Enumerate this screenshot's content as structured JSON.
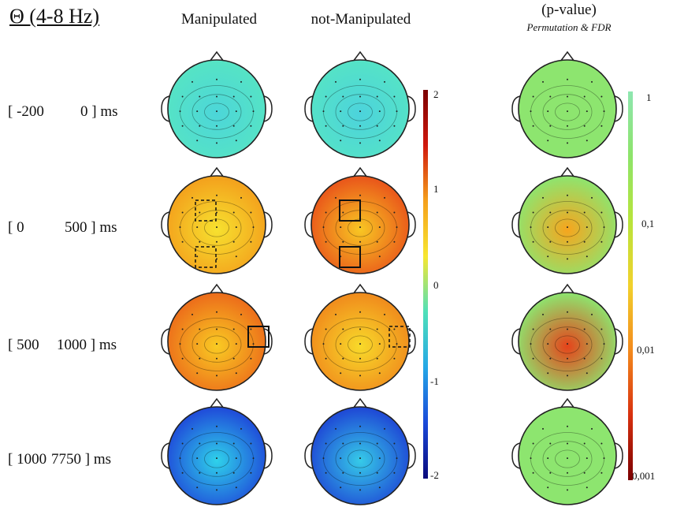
{
  "header": {
    "band_title": "Θ (4-8 Hz)",
    "col_manipulated": "Manipulated",
    "col_not_manipulated": "not-Manipulated",
    "col_pvalue": "(p-value)",
    "col_pvalue_sub": "Permutation & FDR"
  },
  "rows": [
    {
      "start": "[ -200",
      "end": "0 ] ms"
    },
    {
      "start": "[ 0",
      "end": "500 ] ms"
    },
    {
      "start": "[ 500",
      "end": "1000 ] ms"
    },
    {
      "start": "[ 1000",
      "end": "7750 ] ms"
    }
  ],
  "power_colorbar": {
    "ticks": [
      "2",
      "1",
      "0",
      "-1",
      "-2"
    ],
    "colors": [
      "#7a0000",
      "#d0190e",
      "#f5a01c",
      "#f7e730",
      "#4fe0b9",
      "#25a7e6",
      "#1a49d9",
      "#0a0a7c"
    ]
  },
  "pvalue_colorbar": {
    "ticks": [
      "1",
      "0,1",
      "0,01",
      "0,001"
    ],
    "colors": [
      "#8ee6b0",
      "#8de46a",
      "#b8e43b",
      "#f2d12c",
      "#f38a1d",
      "#d8300f",
      "#7a0000"
    ]
  },
  "maps": {
    "manipulated": [
      {
        "fill": "#56e4c4",
        "accent": "#4cd6d9"
      },
      {
        "fill": "#f3a01c",
        "accent": "#f7e12f"
      },
      {
        "fill": "#ec6b1a",
        "accent": "#f9cb23"
      },
      {
        "fill": "#1f49d9",
        "accent": "#2fd2ea"
      }
    ],
    "not_manipulated": [
      {
        "fill": "#55e3c6",
        "accent": "#4cd3dc"
      },
      {
        "fill": "#e9541a",
        "accent": "#f8c723"
      },
      {
        "fill": "#f08a1c",
        "accent": "#f8da2a"
      },
      {
        "fill": "#1e46d5",
        "accent": "#36cbe8"
      }
    ],
    "pvalue": [
      {
        "fill": "#8de56f",
        "accent": "#8de56f"
      },
      {
        "fill": "#8de56f",
        "accent": "#f7a51d"
      },
      {
        "fill": "#8de56f",
        "accent": "#e6431a"
      },
      {
        "fill": "#8de56f",
        "accent": "#8de56f"
      }
    ]
  }
}
